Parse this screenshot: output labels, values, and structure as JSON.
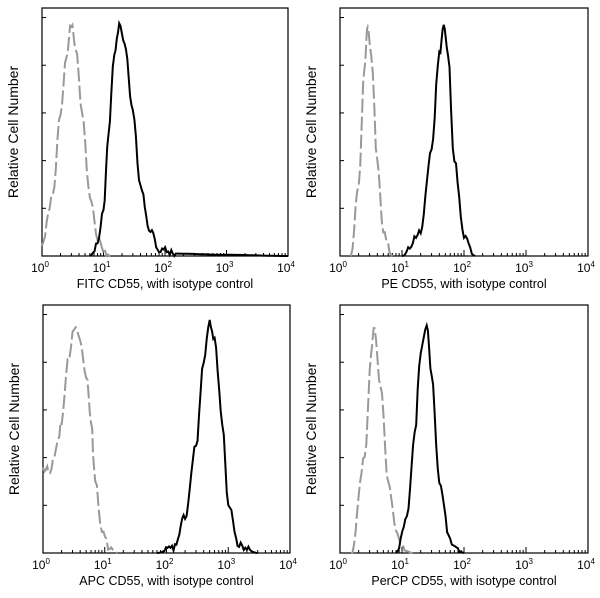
{
  "chart_data": [
    {
      "type": "line",
      "xlabel": "FITC  CD55,  with isotype control",
      "ylabel": "Relative Cell Number",
      "x_scale": "log",
      "xlim": [
        1,
        10000
      ],
      "ylim": [
        0,
        100
      ],
      "x_ticks": [
        {
          "base": "10",
          "exp": "0"
        },
        {
          "base": "10",
          "exp": "1"
        },
        {
          "base": "10",
          "exp": "2"
        },
        {
          "base": "10",
          "exp": "3"
        },
        {
          "base": "10",
          "exp": "4"
        }
      ],
      "series": [
        {
          "style": "dashed",
          "color": "#999999",
          "points": [
            [
              1,
              5
            ],
            [
              1.5,
              25
            ],
            [
              2,
              60
            ],
            [
              2.5,
              85
            ],
            [
              3,
              97
            ],
            [
              3.5,
              88
            ],
            [
              4.5,
              60
            ],
            [
              6,
              25
            ],
            [
              8,
              8
            ],
            [
              10,
              2
            ],
            [
              13,
              0
            ]
          ]
        },
        {
          "style": "solid",
          "color": "#000000",
          "points": [
            [
              6,
              0
            ],
            [
              8,
              5
            ],
            [
              10,
              20
            ],
            [
              12,
              50
            ],
            [
              15,
              85
            ],
            [
              18,
              97
            ],
            [
              22,
              90
            ],
            [
              30,
              60
            ],
            [
              40,
              30
            ],
            [
              55,
              12
            ],
            [
              80,
              3
            ],
            [
              150,
              1
            ],
            [
              1000,
              0.5
            ],
            [
              10000,
              0
            ]
          ]
        }
      ]
    },
    {
      "type": "line",
      "xlabel": "PE CD55,  with isotype control",
      "ylabel": "Relative Cell Number",
      "x_scale": "log",
      "xlim": [
        1,
        10000
      ],
      "ylim": [
        0,
        100
      ],
      "x_ticks": [
        {
          "base": "10",
          "exp": "0"
        },
        {
          "base": "10",
          "exp": "1"
        },
        {
          "base": "10",
          "exp": "2"
        },
        {
          "base": "10",
          "exp": "3"
        },
        {
          "base": "10",
          "exp": "4"
        }
      ],
      "series": [
        {
          "style": "dashed",
          "color": "#999999",
          "points": [
            [
              1.5,
              0
            ],
            [
              2,
              30
            ],
            [
              2.5,
              80
            ],
            [
              2.8,
              97
            ],
            [
              3.2,
              85
            ],
            [
              4,
              40
            ],
            [
              5,
              10
            ],
            [
              7,
              0
            ]
          ]
        },
        {
          "style": "solid",
          "color": "#000000",
          "points": [
            [
              10,
              0
            ],
            [
              20,
              10
            ],
            [
              30,
              45
            ],
            [
              40,
              85
            ],
            [
              47,
              97
            ],
            [
              55,
              85
            ],
            [
              70,
              40
            ],
            [
              100,
              8
            ],
            [
              150,
              0
            ]
          ]
        }
      ]
    },
    {
      "type": "line",
      "xlabel": "APC CD55, with isotype control",
      "ylabel": "Relative Cell Number",
      "x_scale": "log",
      "xlim": [
        1,
        10000
      ],
      "ylim": [
        0,
        100
      ],
      "x_ticks": [
        {
          "base": "10",
          "exp": "0"
        },
        {
          "base": "10",
          "exp": "1"
        },
        {
          "base": "10",
          "exp": "2"
        },
        {
          "base": "10",
          "exp": "3"
        },
        {
          "base": "10",
          "exp": "4"
        }
      ],
      "series": [
        {
          "style": "dashed",
          "color": "#999999",
          "points": [
            [
              1,
              35
            ],
            [
              1.3,
              35
            ],
            [
              1.7,
              45
            ],
            [
              2,
              55
            ],
            [
              2.5,
              80
            ],
            [
              3.2,
              95
            ],
            [
              4,
              90
            ],
            [
              5,
              75
            ],
            [
              6,
              55
            ],
            [
              7,
              30
            ],
            [
              9,
              10
            ],
            [
              12,
              2
            ],
            [
              16,
              0
            ]
          ]
        },
        {
          "style": "solid",
          "color": "#000000",
          "points": [
            [
              70,
              0
            ],
            [
              130,
              2
            ],
            [
              200,
              15
            ],
            [
              300,
              45
            ],
            [
              400,
              80
            ],
            [
              500,
              97
            ],
            [
              600,
              90
            ],
            [
              800,
              55
            ],
            [
              1000,
              20
            ],
            [
              1500,
              3
            ],
            [
              3000,
              0
            ]
          ]
        }
      ]
    },
    {
      "type": "line",
      "xlabel": "PerCP CD55, with isotype control",
      "ylabel": "Relative Cell Number",
      "x_scale": "log",
      "xlim": [
        1,
        10000
      ],
      "ylim": [
        0,
        100
      ],
      "x_ticks": [
        {
          "base": "10",
          "exp": "0"
        },
        {
          "base": "10",
          "exp": "1"
        },
        {
          "base": "10",
          "exp": "2"
        },
        {
          "base": "10",
          "exp": "3"
        },
        {
          "base": "10",
          "exp": "4"
        }
      ],
      "series": [
        {
          "style": "dashed",
          "color": "#999999",
          "points": [
            [
              1.5,
              0
            ],
            [
              2.5,
              40
            ],
            [
              3.2,
              85
            ],
            [
              3.6,
              95
            ],
            [
              4.5,
              70
            ],
            [
              6,
              30
            ],
            [
              8,
              10
            ],
            [
              11,
              1
            ],
            [
              15,
              0
            ]
          ]
        },
        {
          "style": "solid",
          "color": "#000000",
          "points": [
            [
              8,
              0
            ],
            [
              12,
              15
            ],
            [
              16,
              50
            ],
            [
              20,
              85
            ],
            [
              25,
              95
            ],
            [
              30,
              75
            ],
            [
              40,
              30
            ],
            [
              60,
              5
            ],
            [
              100,
              0
            ]
          ]
        }
      ]
    }
  ]
}
